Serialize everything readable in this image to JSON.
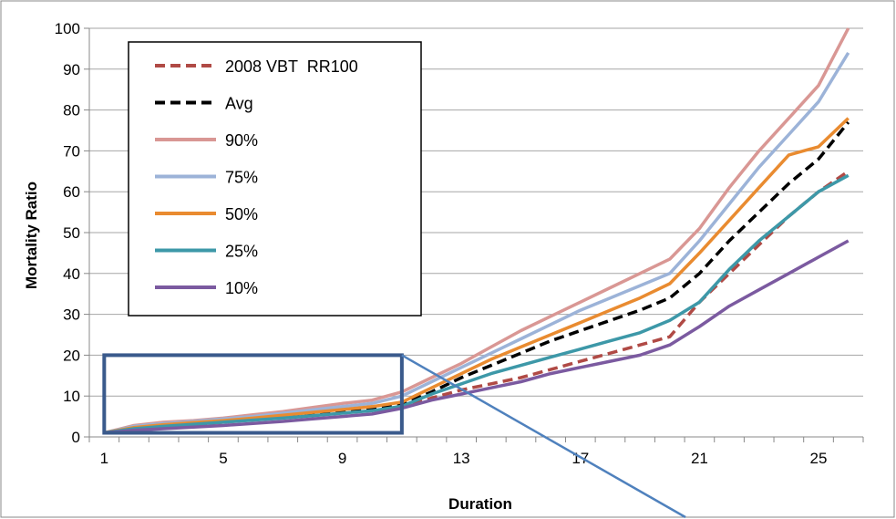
{
  "chart_data": {
    "type": "line",
    "xlabel": "Duration",
    "ylabel": "Mortality Ratio",
    "x": [
      1,
      2,
      3,
      4,
      5,
      6,
      7,
      8,
      9,
      10,
      11,
      12,
      13,
      14,
      15,
      16,
      17,
      18,
      19,
      20,
      21,
      22,
      23,
      24,
      25,
      26
    ],
    "x_ticks": [
      1,
      5,
      9,
      13,
      17,
      21,
      25
    ],
    "xlim": [
      1,
      26
    ],
    "ylim": [
      0,
      100
    ],
    "y_ticks": [
      0,
      10,
      20,
      30,
      40,
      50,
      60,
      70,
      80,
      90,
      100
    ],
    "grid": "horizontal",
    "legend_position": "top-left inside",
    "series": [
      {
        "name": "2008 VBT  RR100",
        "color": "#b04a45",
        "dash": true,
        "values": [
          1,
          1.8,
          2.4,
          3.0,
          3.6,
          4.2,
          4.8,
          5.4,
          6.0,
          6.6,
          7.5,
          9.5,
          11.5,
          13.0,
          14.5,
          16.5,
          18.5,
          20.5,
          22.5,
          24.5,
          33,
          40,
          47,
          54,
          60,
          65
        ]
      },
      {
        "name": "Avg",
        "color": "#000000",
        "dash": true,
        "values": [
          1,
          2.2,
          2.8,
          3.4,
          4.0,
          4.6,
          5.2,
          5.8,
          6.4,
          7.0,
          8.0,
          11.0,
          14.5,
          17.5,
          20.5,
          23.5,
          26.0,
          28.5,
          31.0,
          34.0,
          40,
          48,
          55,
          62,
          68,
          77
        ]
      },
      {
        "name": "90%",
        "color": "#d99794",
        "dash": false,
        "values": [
          1,
          2.8,
          3.6,
          4.0,
          4.6,
          5.4,
          6.2,
          7.2,
          8.2,
          9.0,
          11.0,
          14.5,
          18.0,
          22.0,
          26.0,
          29.5,
          33.0,
          36.5,
          40.0,
          43.5,
          51,
          61,
          70,
          78,
          86,
          100
        ]
      },
      {
        "name": "75%",
        "color": "#9cb3d8",
        "dash": false,
        "values": [
          1,
          2.6,
          3.3,
          3.8,
          4.4,
          5.0,
          5.8,
          6.6,
          7.4,
          8.2,
          10.0,
          13.5,
          17.0,
          20.5,
          24.0,
          27.5,
          31.0,
          34.0,
          37.0,
          40.0,
          48,
          57,
          66,
          74,
          82,
          94
        ]
      },
      {
        "name": "50%",
        "color": "#e98b30",
        "dash": false,
        "values": [
          1,
          2.3,
          3.0,
          3.5,
          4.0,
          4.6,
          5.3,
          6.0,
          6.7,
          7.4,
          8.5,
          12.0,
          15.5,
          19.0,
          22.0,
          25.0,
          28.0,
          31.0,
          34.0,
          37.5,
          45,
          53,
          61,
          69,
          71,
          78
        ]
      },
      {
        "name": "25%",
        "color": "#3d98a8",
        "dash": false,
        "values": [
          1,
          2.0,
          2.6,
          3.1,
          3.6,
          4.1,
          4.6,
          5.2,
          5.8,
          6.4,
          7.5,
          10.5,
          13.0,
          15.5,
          17.5,
          19.5,
          21.5,
          23.5,
          25.5,
          28.5,
          33,
          41,
          48,
          54,
          60,
          64
        ]
      },
      {
        "name": "10%",
        "color": "#7b5aa0",
        "dash": false,
        "values": [
          1,
          1.6,
          2.0,
          2.4,
          2.8,
          3.3,
          3.8,
          4.4,
          5.0,
          5.6,
          7.0,
          9.0,
          10.5,
          12.0,
          13.5,
          15.5,
          17.0,
          18.5,
          20.0,
          22.5,
          27,
          32,
          36,
          40,
          44,
          48
        ]
      }
    ],
    "annotation_box": {
      "x_from": 1,
      "x_to": 11,
      "y_from": 1,
      "y_to": 20,
      "color": "#3a5a8c"
    },
    "callout_line": {
      "from_x": 11,
      "from_y": 20,
      "color": "#4f81bd"
    }
  }
}
